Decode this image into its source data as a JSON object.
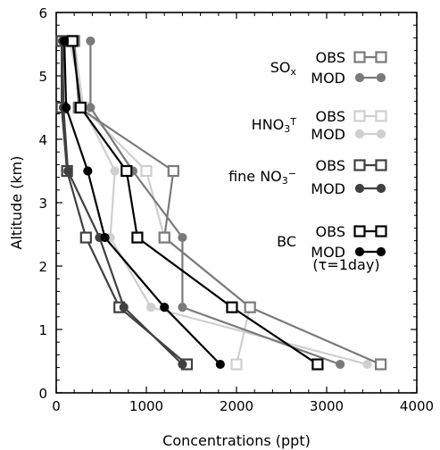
{
  "chart_data": {
    "type": "line",
    "xlabel": "Concentrations (ppt)",
    "ylabel": "Altitude (km)",
    "xlim": [
      0,
      4000
    ],
    "ylim": [
      0,
      6
    ],
    "xticks": [
      "0",
      "1000",
      "2000",
      "3000",
      "4000"
    ],
    "yticks": [
      "0",
      "1",
      "2",
      "3",
      "4",
      "5",
      "6"
    ],
    "grid": false,
    "legend_position": "right",
    "legend": [
      {
        "species_parts": [
          [
            "SO",
            "base"
          ],
          [
            "x",
            "sub"
          ]
        ],
        "obs_label": "OBS",
        "mod_label": "MOD",
        "color": "#7a7a7a"
      },
      {
        "species_parts": [
          [
            "HNO",
            "base"
          ],
          [
            "3",
            "sub"
          ],
          [
            "T",
            "sup"
          ]
        ],
        "obs_label": "OBS",
        "mod_label": "MOD",
        "color": "#cfcfcf"
      },
      {
        "species_parts": [
          [
            "fine NO",
            "base"
          ],
          [
            "3",
            "sub"
          ],
          [
            "−",
            "sup"
          ]
        ],
        "obs_label": "OBS",
        "mod_label": "MOD",
        "color": "#404040"
      },
      {
        "species_parts": [
          [
            "BC",
            "base"
          ]
        ],
        "obs_label": "OBS",
        "mod_label": "MOD",
        "color": "#000000",
        "note": "(τ=1day)"
      }
    ],
    "series": [
      {
        "color": "#cfcfcf",
        "marker": "square",
        "x": [
          2000,
          2150,
          1200,
          1000,
          300,
          200
        ],
        "y": [
          0.45,
          1.35,
          2.45,
          3.5,
          4.5,
          5.55
        ]
      },
      {
        "color": "#cfcfcf",
        "marker": "circle",
        "x": [
          3450,
          1050,
          600,
          650,
          300,
          150
        ],
        "y": [
          0.45,
          1.35,
          2.45,
          3.5,
          4.5,
          5.55
        ]
      },
      {
        "color": "#7a7a7a",
        "marker": "square",
        "x": [
          3600,
          2150,
          1200,
          1300,
          250,
          200
        ],
        "y": [
          0.45,
          1.35,
          2.45,
          3.5,
          4.5,
          5.55
        ]
      },
      {
        "color": "#7a7a7a",
        "marker": "circle",
        "x": [
          3150,
          1400,
          1400,
          850,
          380,
          380
        ],
        "y": [
          0.45,
          1.35,
          2.45,
          3.5,
          4.5,
          5.55
        ]
      },
      {
        "color": "#404040",
        "marker": "square",
        "x": [
          1450,
          700,
          330,
          120,
          60,
          60
        ],
        "y": [
          0.45,
          1.35,
          2.45,
          3.5,
          4.5,
          5.55
        ]
      },
      {
        "color": "#404040",
        "marker": "circle",
        "x": [
          1400,
          750,
          480,
          130,
          80,
          70
        ],
        "y": [
          0.45,
          1.35,
          2.45,
          3.5,
          4.5,
          5.55
        ]
      },
      {
        "color": "#000000",
        "marker": "square",
        "x": [
          2900,
          1950,
          900,
          780,
          270,
          180
        ],
        "y": [
          0.45,
          1.35,
          2.45,
          3.5,
          4.5,
          5.55
        ]
      },
      {
        "color": "#000000",
        "marker": "circle",
        "x": [
          1820,
          1200,
          540,
          350,
          110,
          90
        ],
        "y": [
          0.45,
          1.35,
          2.45,
          3.5,
          4.5,
          5.55
        ]
      }
    ]
  }
}
